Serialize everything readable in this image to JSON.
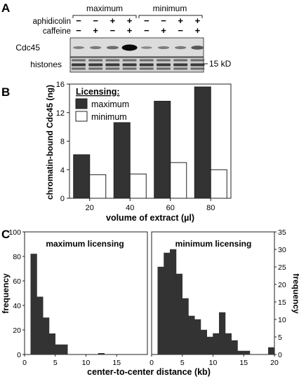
{
  "panelA": {
    "label": "A",
    "group_labels": [
      "maximum",
      "minimum"
    ],
    "row_labels": [
      "aphidicolin",
      "caffeine"
    ],
    "conditions": {
      "aphidicolin": [
        "−",
        "−",
        "+",
        "+",
        "−",
        "−",
        "+",
        "+"
      ],
      "caffeine": [
        "−",
        "+",
        "−",
        "+",
        "−",
        "+",
        "−",
        "+"
      ]
    },
    "blot_labels": [
      "Cdc45",
      "histones"
    ],
    "marker_label": "15 kD",
    "cdc45_band_intensity": [
      0.15,
      0.2,
      0.3,
      1.0,
      0.1,
      0.18,
      0.2,
      0.45
    ]
  },
  "panelB": {
    "label": "B",
    "legend_title": "Licensing:",
    "chart_data": {
      "type": "bar",
      "categories": [
        "20",
        "40",
        "60",
        "80"
      ],
      "series": [
        {
          "name": "maximum",
          "values": [
            6.1,
            10.6,
            13.6,
            15.6
          ],
          "color": "#333333"
        },
        {
          "name": "minimum",
          "values": [
            3.3,
            3.4,
            5.0,
            4.0
          ],
          "color": "#ffffff"
        }
      ],
      "xlabel": "volume of extract (µl)",
      "ylabel": "chromatin-bound Cdc45 (ng)",
      "ylim": [
        0,
        16
      ],
      "yticks": [
        "0",
        "4",
        "8",
        "12",
        "16"
      ],
      "legend": "top-left"
    }
  },
  "panelC": {
    "label": "C",
    "xlabel": "center-to-center distance (kb)",
    "chart_data": [
      {
        "type": "bar",
        "title": "maximum licensing",
        "ylabel": "frequency",
        "ylim": [
          0,
          100
        ],
        "yticks": [
          "0",
          "20",
          "40",
          "60",
          "80",
          "100"
        ],
        "xlim": [
          0,
          20
        ],
        "xticks": [
          "0",
          "5",
          "10",
          "15"
        ],
        "bin_width": 1,
        "bin_starts": [
          1,
          2,
          3,
          4,
          5,
          6,
          12
        ],
        "values": [
          82,
          47,
          30,
          17,
          8,
          8,
          1
        ]
      },
      {
        "type": "bar",
        "title": "minimum licensing",
        "ylabel": "frequency",
        "ylim": [
          0,
          35
        ],
        "yticks": [
          "0",
          "5",
          "10",
          "15",
          "20",
          "25",
          "30",
          "35"
        ],
        "xlim": [
          0,
          20
        ],
        "xticks": [
          "0",
          "5",
          "10",
          "15",
          "20"
        ],
        "bin_width": 1,
        "bin_starts": [
          1,
          2,
          3,
          4,
          5,
          6,
          7,
          8,
          9,
          10,
          11,
          12,
          13,
          14,
          15,
          19
        ],
        "values": [
          25,
          29,
          30,
          23,
          16,
          11,
          10,
          7,
          5,
          6,
          12,
          6,
          4,
          1,
          1,
          2
        ]
      }
    ]
  }
}
